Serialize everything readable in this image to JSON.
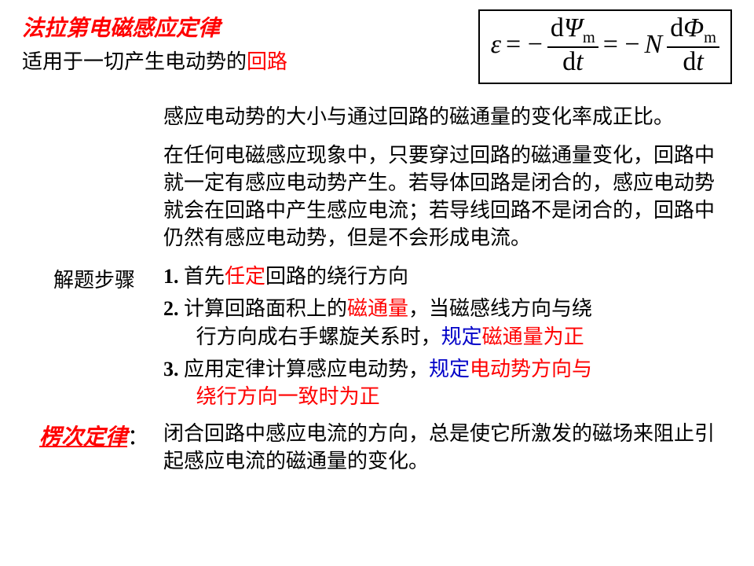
{
  "title": "法拉第电磁感应定律",
  "subtitle_pre": "适用于一切产生电动势的",
  "subtitle_red": "回路",
  "formula": {
    "eps": "ε",
    "eq1": "= −",
    "num1_d": "d",
    "num1_sym": "Ψ",
    "num1_sub": "m",
    "den1_d": "d",
    "den1_t": "t",
    "eq2": "= −",
    "N": "N",
    "num2_d": "d",
    "num2_sym": "Φ",
    "num2_sub": "m",
    "den2_d": "d",
    "den2_t": "t"
  },
  "para1": "感应电动势的大小与通过回路的磁通量的变化率成正比。",
  "para2": "在任何电磁感应现象中，只要穿过回路的磁通量变化，回路中就一定有感应电动势产生。若导体回路是闭合的，感应电动势就会在回路中产生感应电流；若导线回路不是闭合的，回路中仍然有感应电动势，但是不会形成电流。",
  "steps_label": "解题步骤",
  "step1_num": "1. ",
  "step1_a": "首先",
  "step1_red": "任定",
  "step1_b": "回路的绕行方向",
  "step2_num": "2. ",
  "step2_a": "计算回路面积上的",
  "step2_red1": "磁通量",
  "step2_b": "，当磁感线方向与绕",
  "step2_line2a": "行方向成右手螺旋关系时，",
  "step2_blue": "规定",
  "step2_red2": "磁通量为正",
  "step3_num": "3. ",
  "step3_a": "应用定律计算感应电动势，",
  "step3_blue": "规定",
  "step3_red1": "电动势方向与",
  "step3_red2": "绕行方向一致时为正",
  "lenz_label": "楞次定律",
  "lenz_colon": "：",
  "lenz_body": "闭合回路中感应电流的方向，总是使它所激发的磁场来阻止引起感应电流的磁通量的变化。"
}
